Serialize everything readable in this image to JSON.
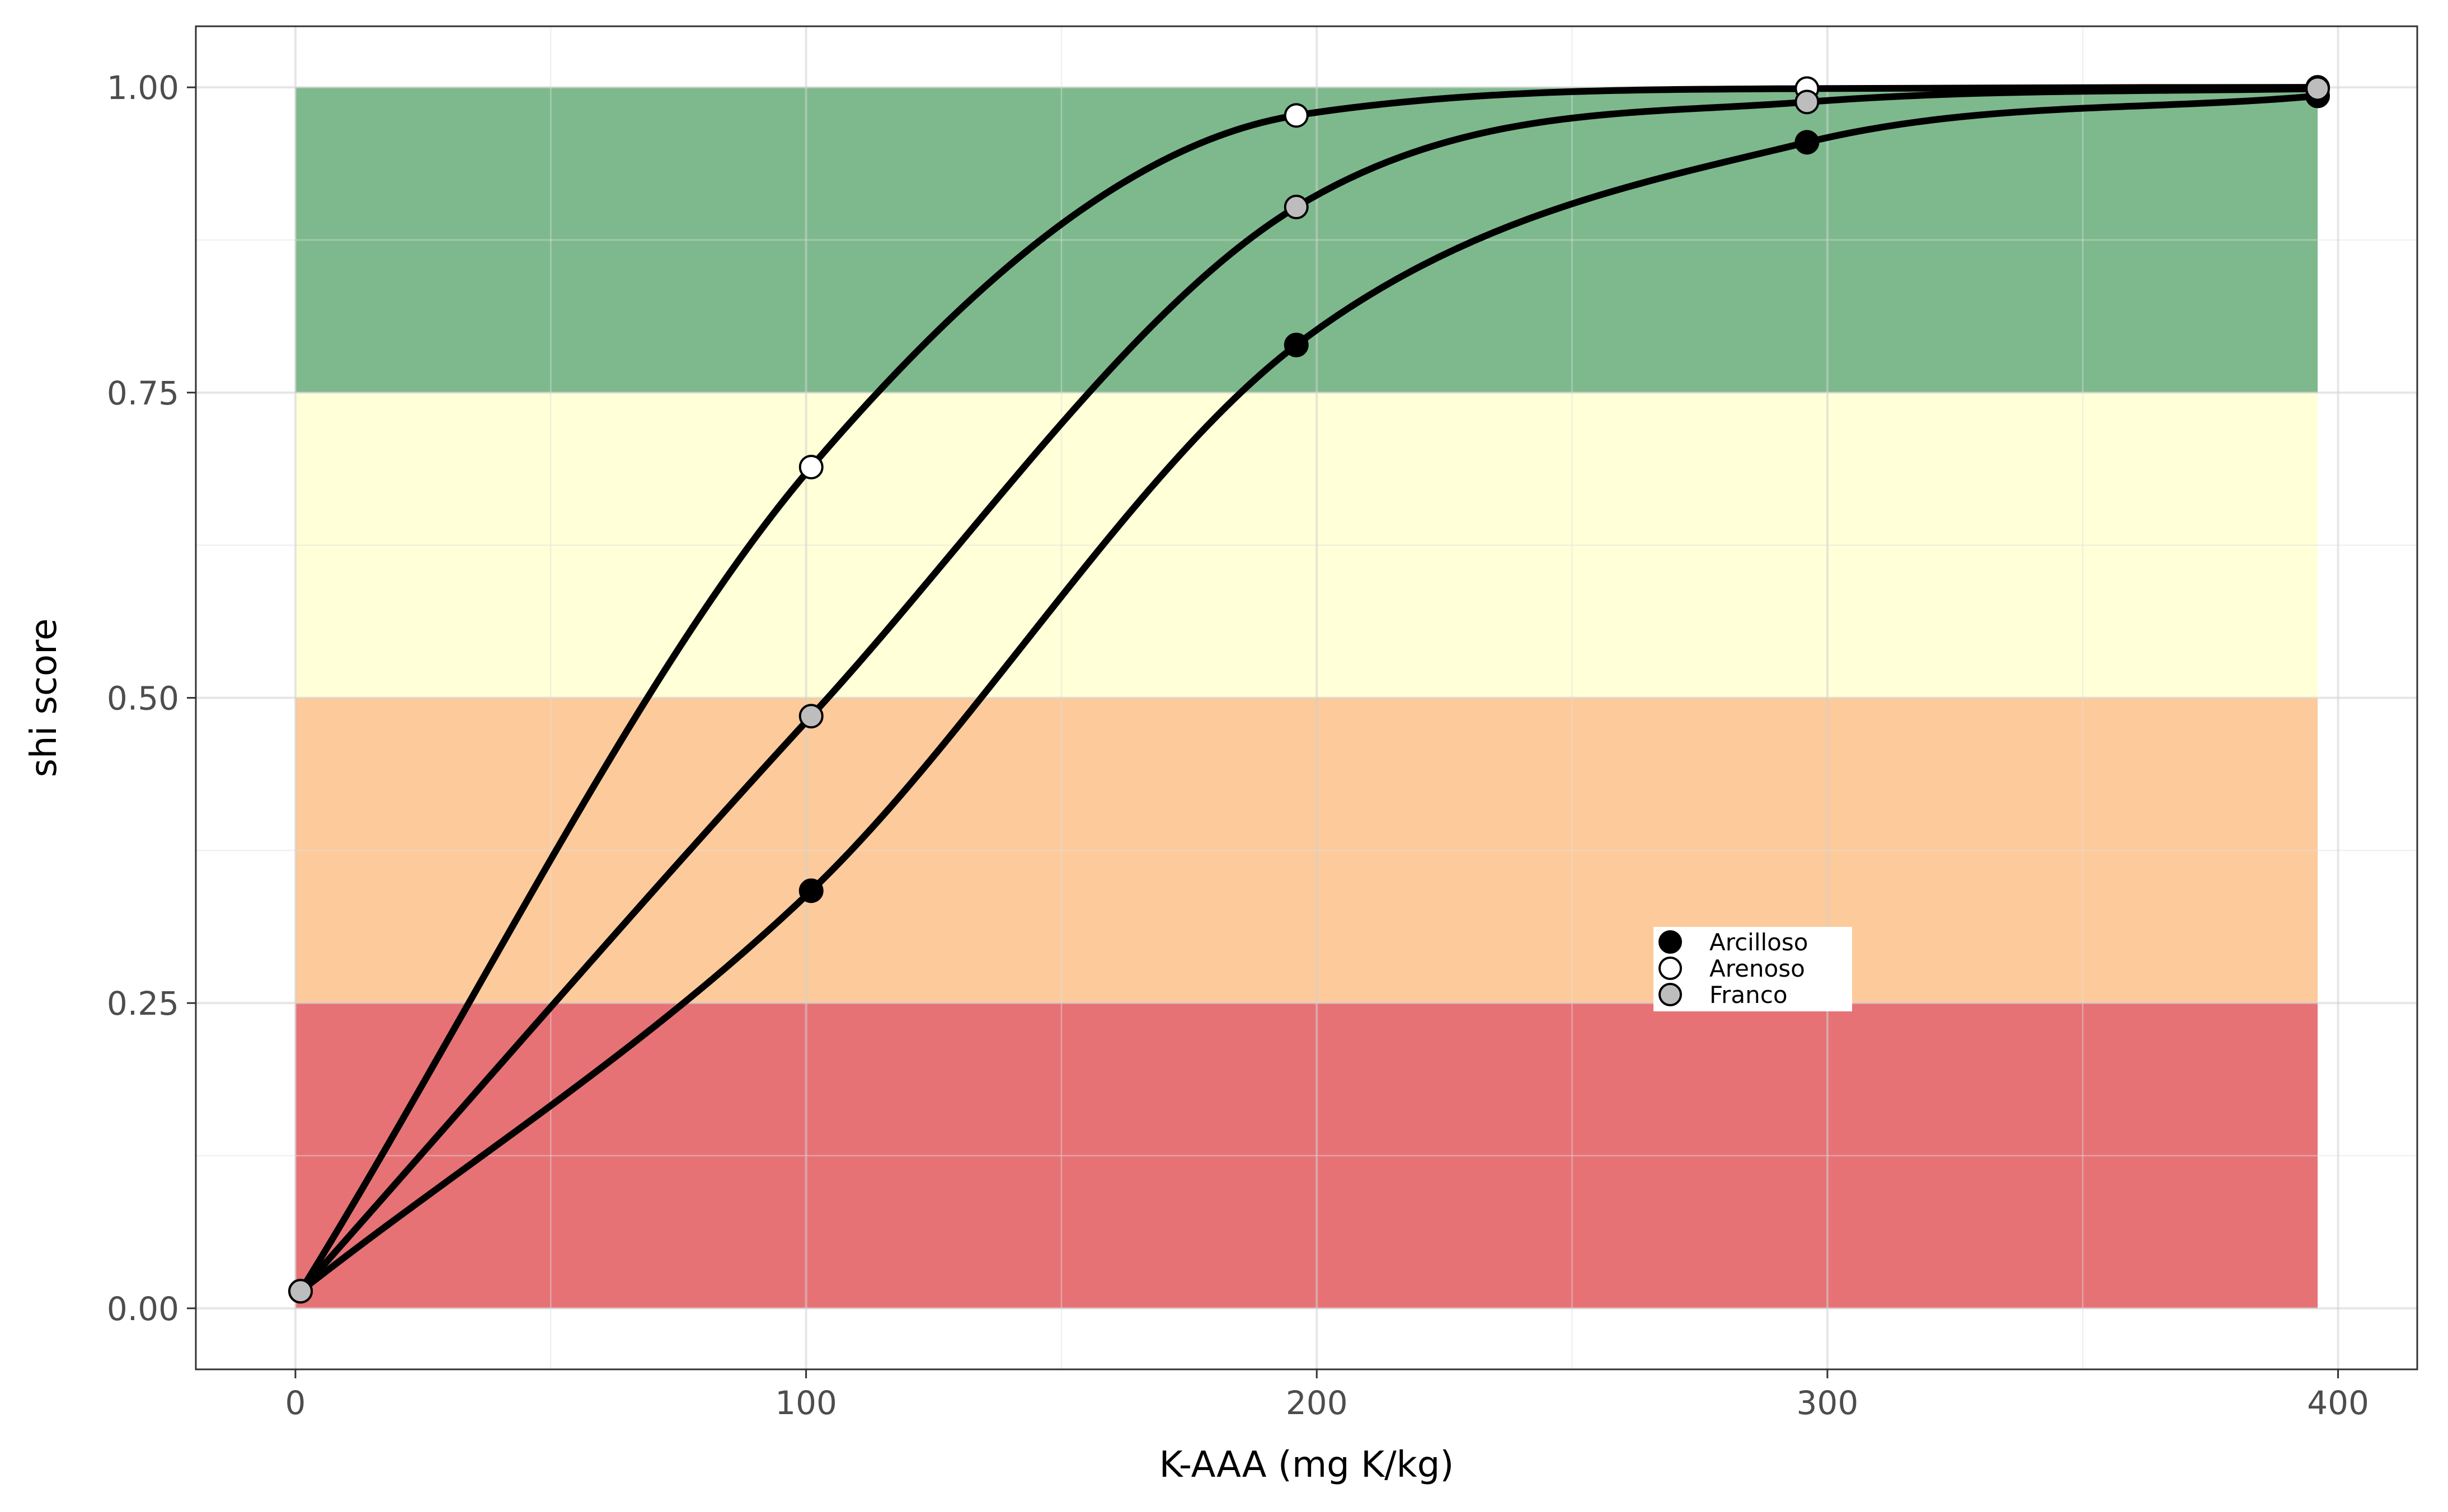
{
  "chart_data": {
    "type": "line",
    "title": "",
    "xlabel": "K-AAA (mg K/kg)",
    "ylabel": "shi score",
    "xlim": [
      -19.5,
      415.5
    ],
    "ylim": [
      -0.05,
      1.05
    ],
    "x_ticks": [
      0,
      100,
      200,
      300,
      400
    ],
    "x_tick_labels": [
      "0",
      "100",
      "200",
      "300",
      "400"
    ],
    "y_ticks": [
      0,
      0.25,
      0.5,
      0.75,
      1.0
    ],
    "y_tick_labels": [
      "0.00",
      "0.25",
      "0.50",
      "0.75",
      "1.00"
    ],
    "grid": true,
    "bands": [
      {
        "from": 0.75,
        "to": 1.0,
        "x_from": 0,
        "x_to": 396,
        "color": "#7db98d"
      },
      {
        "from": 0.5,
        "to": 0.75,
        "x_from": 0,
        "x_to": 396,
        "color": "#ffffd8"
      },
      {
        "from": 0.25,
        "to": 0.5,
        "x_from": 0,
        "x_to": 396,
        "color": "#fdca9b"
      },
      {
        "from": 0.0,
        "to": 0.25,
        "x_from": 0,
        "x_to": 396,
        "color": "#e67275"
      }
    ],
    "legend_position": "inside-right",
    "series": [
      {
        "name": "Arcilloso",
        "marker_fill": "#000000",
        "x": [
          1,
          101,
          196,
          296,
          396
        ],
        "y": [
          0.014,
          0.342,
          0.789,
          0.955,
          0.993
        ]
      },
      {
        "name": "Arenoso",
        "marker_fill": "#ffffff",
        "x": [
          1,
          101,
          196,
          296,
          396
        ],
        "y": [
          0.014,
          0.689,
          0.977,
          0.999,
          1.0
        ]
      },
      {
        "name": "Franco",
        "marker_fill": "#bdbdbd",
        "x": [
          1,
          101,
          196,
          296,
          396
        ],
        "y": [
          0.014,
          0.485,
          0.902,
          0.988,
          0.999
        ]
      }
    ],
    "curve_color": "#000000"
  }
}
